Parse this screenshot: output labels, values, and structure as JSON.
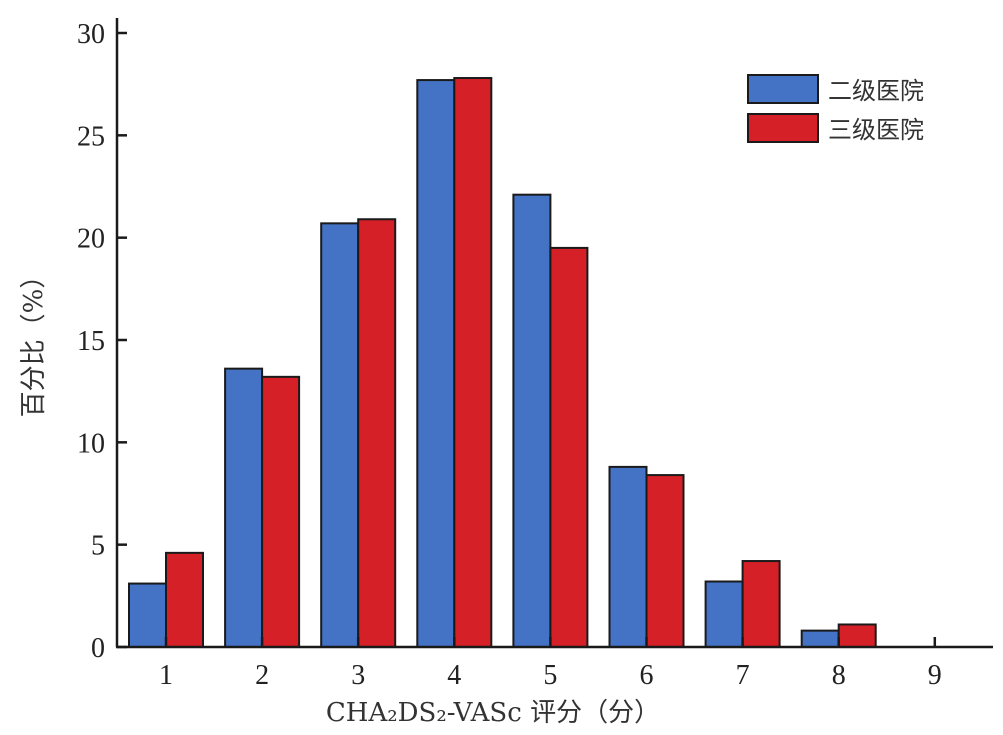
{
  "chart_data": {
    "type": "bar",
    "title": "",
    "xlabel": "CHA₂DS₂-VASc 评分（分）",
    "ylabel": "百分比（%）",
    "categories": [
      "1",
      "2",
      "3",
      "4",
      "5",
      "6",
      "7",
      "8",
      "9"
    ],
    "series": [
      {
        "name": "二级医院",
        "color": "#4472c4",
        "values": [
          3.1,
          13.6,
          20.7,
          27.7,
          22.1,
          8.8,
          3.2,
          0.8,
          0
        ]
      },
      {
        "name": "三级医院",
        "color": "#d52027",
        "values": [
          4.6,
          13.2,
          20.9,
          27.8,
          19.5,
          8.4,
          4.2,
          1.1,
          0
        ]
      }
    ],
    "ylim": [
      0,
      30
    ],
    "yticks": [
      0,
      5,
      10,
      15,
      20,
      25,
      30
    ],
    "grid": false,
    "legend_position": "top-right"
  }
}
